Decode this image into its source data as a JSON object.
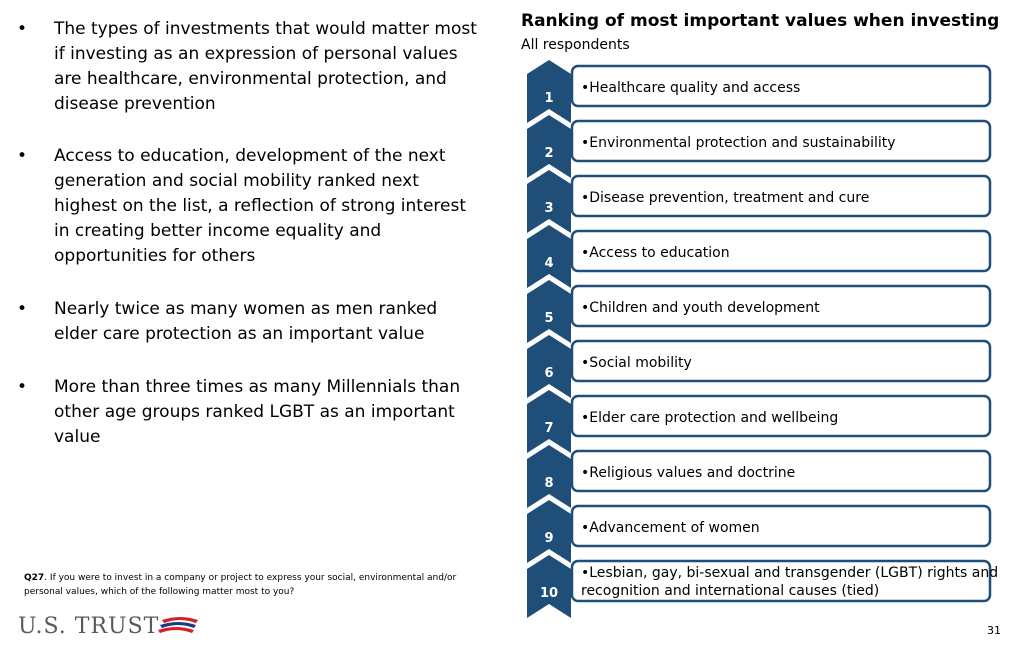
{
  "bullets": [
    "The types of investments that would matter most if investing as an expression of personal values are healthcare, environmental protection, and disease prevention",
    "Access to education, development of the next generation and social mobility ranked next highest on the list, a reflection of strong interest in creating better income equality and opportunities for others",
    "Nearly twice as many women as men ranked elder care protection as an important value",
    "More than three times as many Millennials than other age groups ranked LGBT as an important value"
  ],
  "bullet_glyph": "•",
  "ranking": {
    "title": "Ranking of most important values when investing",
    "subtitle": "All respondents",
    "items": [
      {
        "rank": "1",
        "lines": [
          "•Healthcare quality and access"
        ]
      },
      {
        "rank": "2",
        "lines": [
          "•Environmental protection and sustainability"
        ]
      },
      {
        "rank": "3",
        "lines": [
          "•Disease prevention, treatment and cure"
        ]
      },
      {
        "rank": "4",
        "lines": [
          "•Access to education"
        ]
      },
      {
        "rank": "5",
        "lines": [
          "•Children and youth development"
        ]
      },
      {
        "rank": "6",
        "lines": [
          "•Social mobility"
        ]
      },
      {
        "rank": "7",
        "lines": [
          "•Elder care protection and wellbeing"
        ]
      },
      {
        "rank": "8",
        "lines": [
          "•Religious values and doctrine"
        ]
      },
      {
        "rank": "9",
        "lines": [
          "•Advancement of women"
        ]
      },
      {
        "rank": "10",
        "lines": [
          "•Lesbian, gay, bi-sexual and transgender (LGBT) rights and",
          "recognition and international causes (tied)"
        ]
      }
    ]
  },
  "colors": {
    "chevron_fill": "#1f4e79",
    "box_border": "#1f4e79",
    "logo_red": "#d71e28",
    "logo_blue": "#1a3d7c"
  },
  "footnote": {
    "label": "Q27",
    "text": ". If you were to invest in a company or project to express your social, environmental and/or personal values, which of the following matter most to you?"
  },
  "logo": {
    "text": "U.S. TRUST"
  },
  "page_number": "31"
}
